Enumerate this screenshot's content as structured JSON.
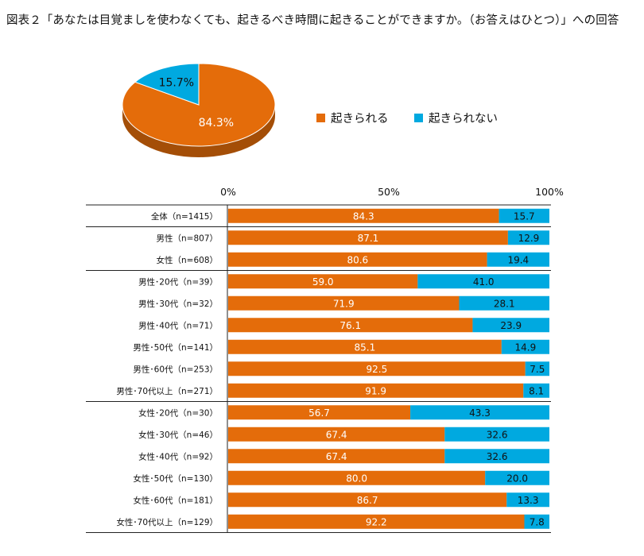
{
  "title": "図表２「あなたは目覚ましを使わなくても、起きるべき時間に起きることができますか。（お答えはひとつ）」への回答",
  "colors": {
    "wake": "#E46C0A",
    "not_wake": "#00A9E0"
  },
  "legend": [
    {
      "label": "起きられる",
      "color": "#E46C0A"
    },
    {
      "label": "起きられない",
      "color": "#00A9E0"
    }
  ],
  "chart_data": [
    {
      "type": "pie",
      "slices": [
        {
          "name": "起きられる",
          "value": 84.3,
          "label": "84.3%"
        },
        {
          "name": "起きられない",
          "value": 15.7,
          "label": "15.7%"
        }
      ]
    },
    {
      "type": "bar",
      "orientation": "horizontal",
      "stacked": true,
      "xlim": [
        0,
        100
      ],
      "xticks": [
        "0%",
        "50%",
        "100%"
      ],
      "categories": [
        "全体（n=1415）",
        "男性（n=807）",
        "女性（n=608）",
        "男性･20代（n=39）",
        "男性･30代（n=32）",
        "男性･40代（n=71）",
        "男性･50代（n=141）",
        "男性･60代（n=253）",
        "男性･70代以上（n=271）",
        "女性･20代（n=30）",
        "女性･30代（n=46）",
        "女性･40代（n=92）",
        "女性･50代（n=130）",
        "女性･60代（n=181）",
        "女性･70代以上（n=129）"
      ],
      "group_separators_after": [
        0,
        2,
        8
      ],
      "series": [
        {
          "name": "起きられる",
          "values": [
            84.3,
            87.1,
            80.6,
            59.0,
            71.9,
            76.1,
            85.1,
            92.5,
            91.9,
            56.7,
            67.4,
            67.4,
            80.0,
            86.7,
            92.2
          ],
          "labels": [
            "84.3",
            "87.1",
            "80.6",
            "59.0",
            "71.9",
            "76.1",
            "85.1",
            "92.5",
            "91.9",
            "56.7",
            "67.4",
            "67.4",
            "80.0",
            "86.7",
            "92.2"
          ]
        },
        {
          "name": "起きられない",
          "values": [
            15.7,
            12.9,
            19.4,
            41.0,
            28.1,
            23.9,
            14.9,
            7.5,
            8.1,
            43.3,
            32.6,
            32.6,
            20.0,
            13.3,
            7.8
          ],
          "labels": [
            "15.7",
            "12.9",
            "19.4",
            "41.0",
            "28.1",
            "23.9",
            "14.9",
            "7.5",
            "8.1",
            "43.3",
            "32.6",
            "32.6",
            "20.0",
            "13.3",
            "7.8"
          ]
        }
      ]
    }
  ]
}
